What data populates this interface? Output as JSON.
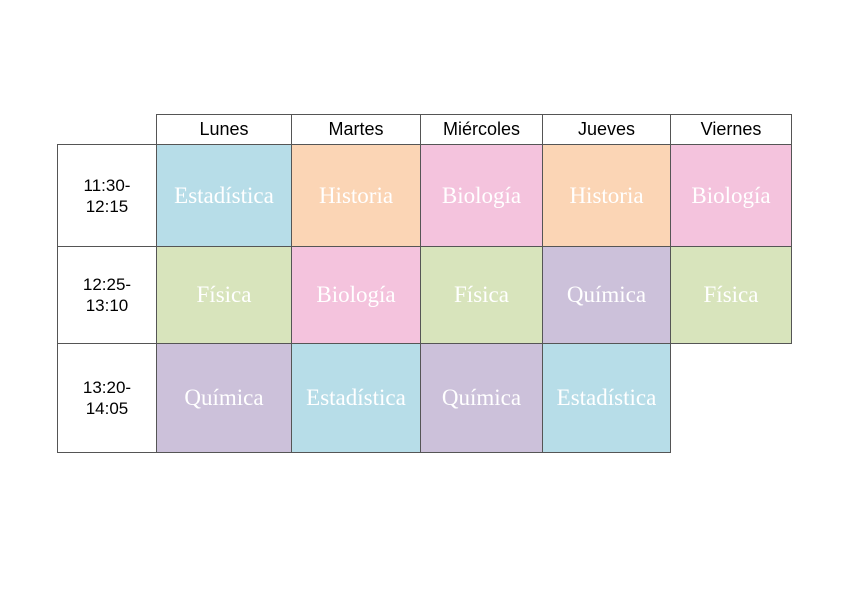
{
  "days": [
    "Lunes",
    "Martes",
    "Miércoles",
    "Jueves",
    "Viernes"
  ],
  "colors": {
    "Estadística": "#b7dde8",
    "Historia": "#fbd5b5",
    "Biología": "#f4c3dd",
    "Física": "#d8e4bc",
    "Química": "#ccc1da"
  },
  "rows": [
    {
      "time": "11:30-\n12:15",
      "subjects": [
        "Estadística",
        "Historia",
        "Biología",
        "Historia",
        "Biología"
      ]
    },
    {
      "time": "12:25-\n13:10",
      "subjects": [
        "Física",
        "Biología",
        "Física",
        "Química",
        "Física"
      ]
    },
    {
      "time": "13:20-\n14:05",
      "subjects": [
        "Química",
        "Estadística",
        "Química",
        "Estadística",
        ""
      ]
    }
  ]
}
